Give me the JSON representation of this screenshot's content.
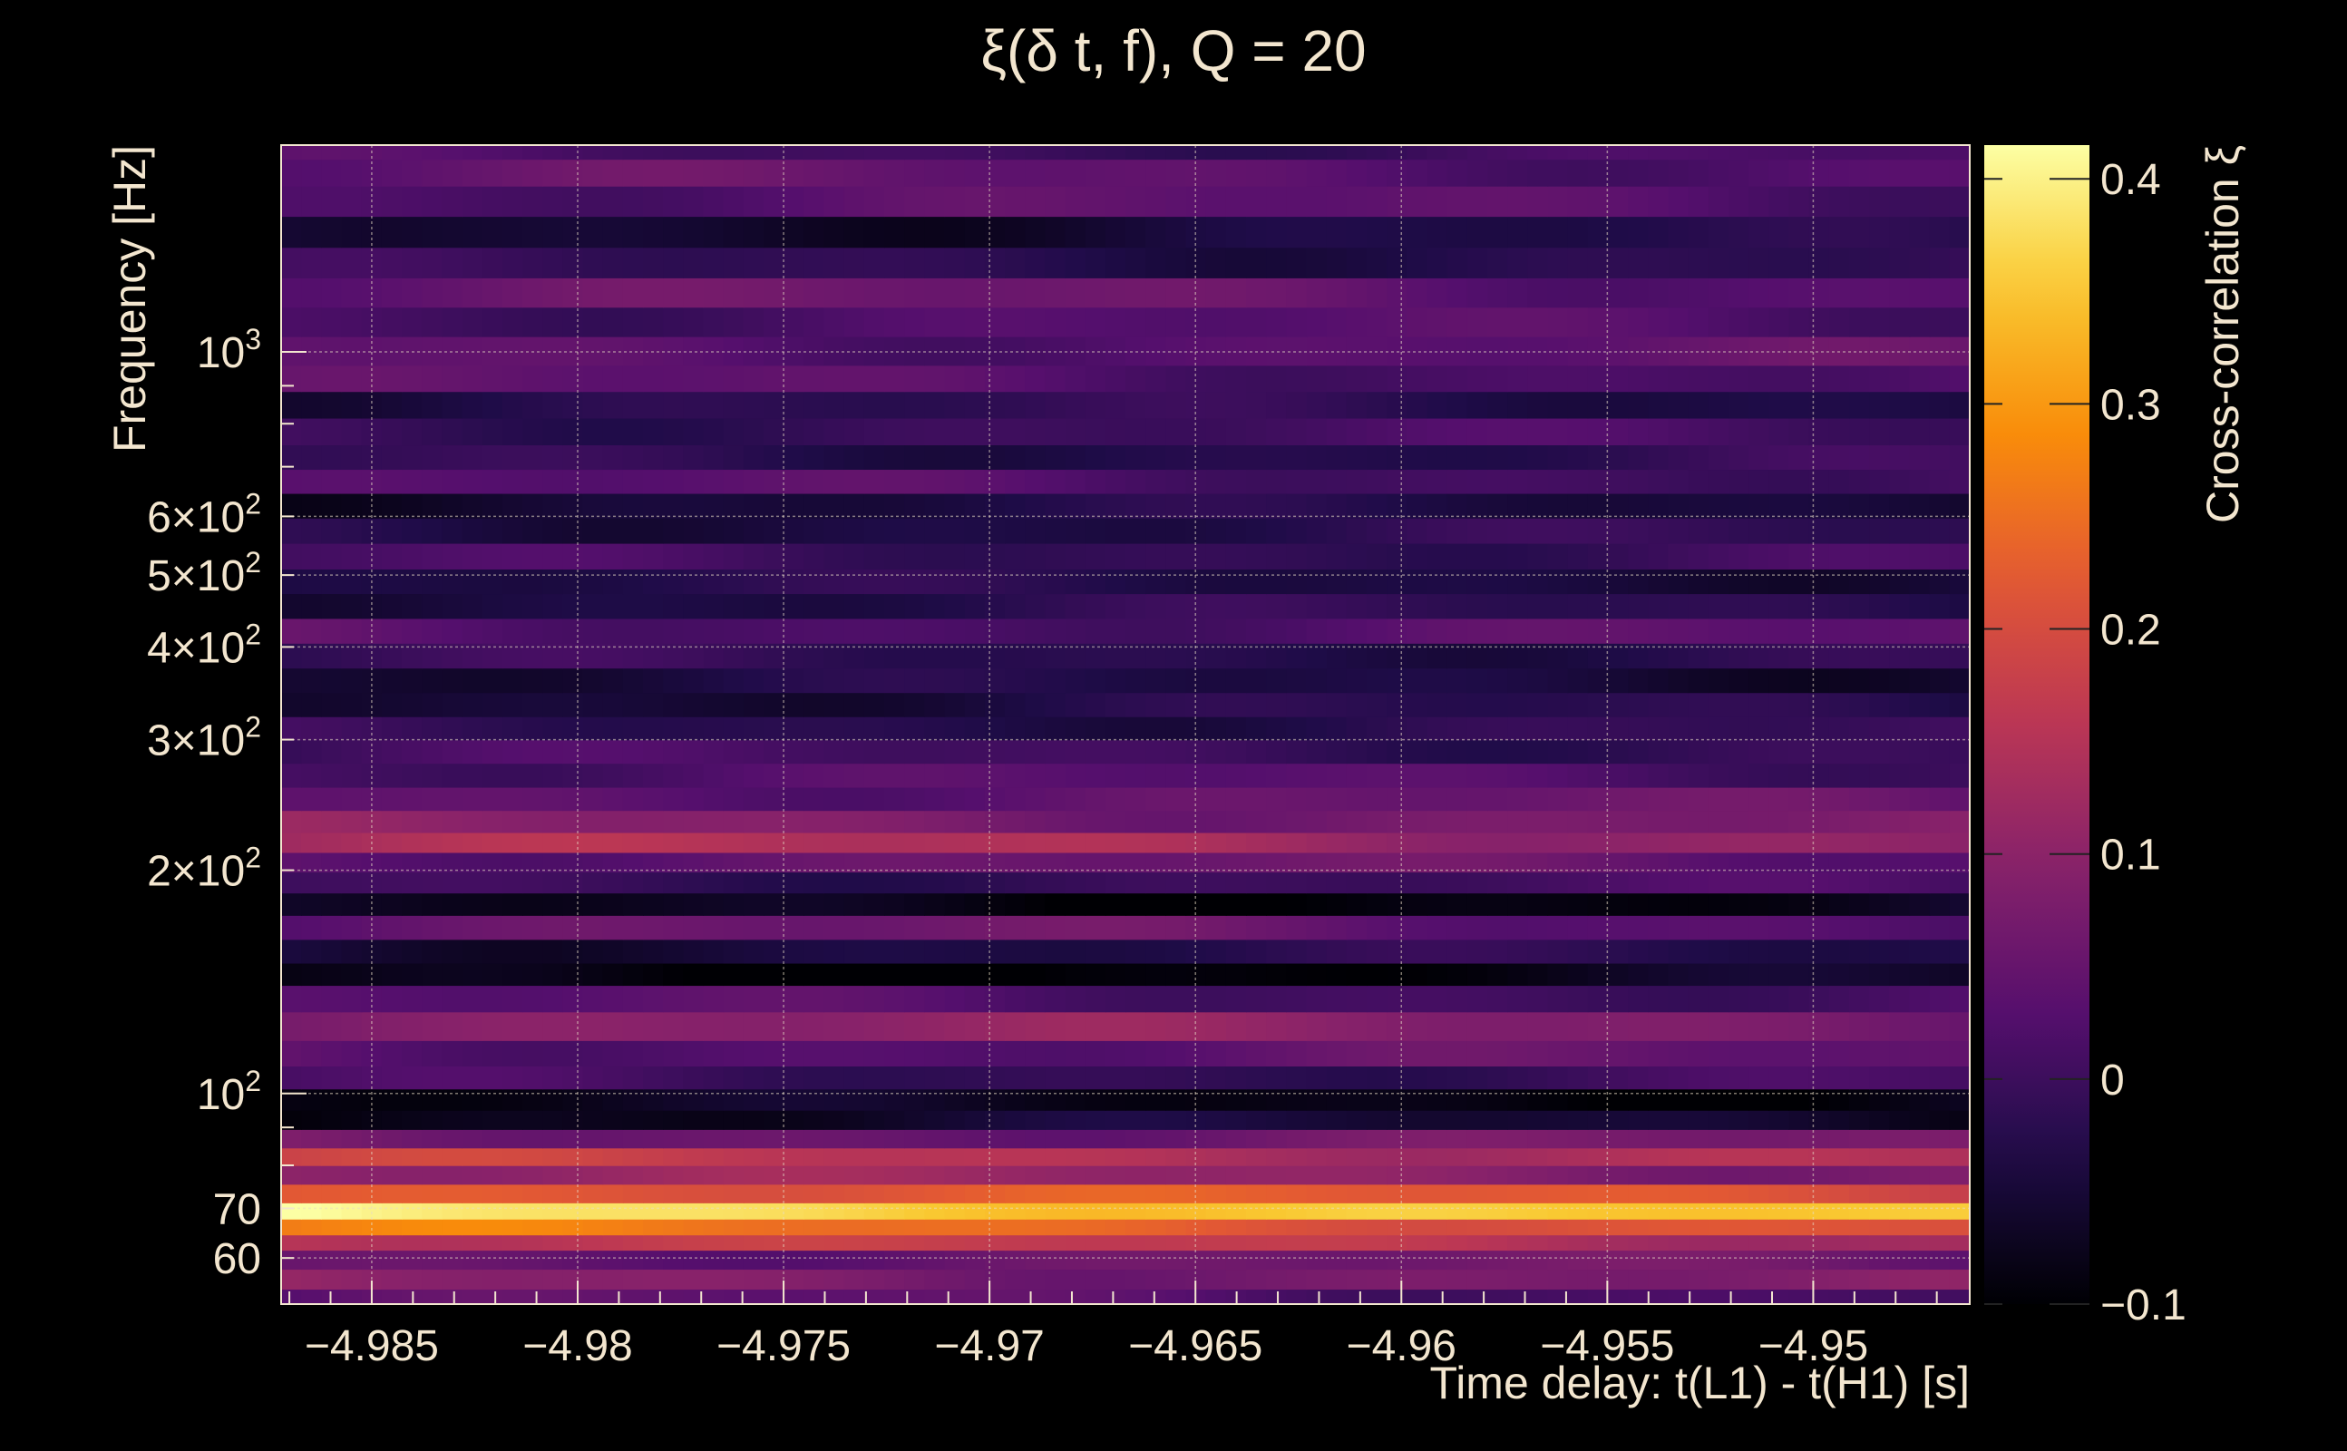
{
  "chart_data": {
    "type": "heatmap",
    "title": "ξ(δ t, f), Q = 20",
    "xlabel": "Time delay: t(L1) - t(H1) [s]",
    "ylabel": "Frequency [Hz]",
    "colorbar_label": "Cross-correlation ξ",
    "x_range": [
      -4.9872,
      -4.9462
    ],
    "y_range": [
      52,
      1900
    ],
    "y_scale": "log",
    "c_range": [
      -0.1,
      0.415
    ],
    "colormap": "inferno",
    "grid": true,
    "background": "#000000",
    "x_ticks": [
      {
        "value": -4.985,
        "label": "−4.985"
      },
      {
        "value": -4.98,
        "label": "−4.98"
      },
      {
        "value": -4.975,
        "label": "−4.975"
      },
      {
        "value": -4.97,
        "label": "−4.97"
      },
      {
        "value": -4.965,
        "label": "−4.965"
      },
      {
        "value": -4.96,
        "label": "−4.96"
      },
      {
        "value": -4.955,
        "label": "−4.955"
      },
      {
        "value": -4.95,
        "label": "−4.95"
      }
    ],
    "y_ticks": [
      {
        "value": 60,
        "label": "60"
      },
      {
        "value": 70,
        "label": "70"
      },
      {
        "value": 100,
        "label": "10",
        "sup": "2"
      },
      {
        "value": 200,
        "label": "2×10",
        "sup": "2"
      },
      {
        "value": 300,
        "label": "3×10",
        "sup": "2"
      },
      {
        "value": 400,
        "label": "4×10",
        "sup": "2"
      },
      {
        "value": 500,
        "label": "5×10",
        "sup": "2"
      },
      {
        "value": 600,
        "label": "6×10",
        "sup": "2"
      },
      {
        "value": 1000,
        "label": "10",
        "sup": "3"
      }
    ],
    "c_ticks": [
      {
        "value": -0.1,
        "label": "−0.1"
      },
      {
        "value": 0,
        "label": "0"
      },
      {
        "value": 0.1,
        "label": "0.1"
      },
      {
        "value": 0.2,
        "label": "0.2"
      },
      {
        "value": 0.3,
        "label": "0.3"
      },
      {
        "value": 0.4,
        "label": "0.4"
      }
    ],
    "band_profile": [
      {
        "f": 53,
        "v": 0.03
      },
      {
        "f": 56,
        "v": 0.09
      },
      {
        "f": 60,
        "v": 0.06
      },
      {
        "f": 63,
        "v": 0.17
      },
      {
        "f": 66,
        "v": 0.26
      },
      {
        "f": 69.5,
        "v": 0.4
      },
      {
        "f": 73,
        "v": 0.24
      },
      {
        "f": 78,
        "v": 0.11
      },
      {
        "f": 82,
        "v": 0.17
      },
      {
        "f": 87,
        "v": 0.07
      },
      {
        "f": 92,
        "v": -0.07
      },
      {
        "f": 98,
        "v": -0.09
      },
      {
        "f": 105,
        "v": 0.0
      },
      {
        "f": 113,
        "v": 0.04
      },
      {
        "f": 123,
        "v": 0.1
      },
      {
        "f": 135,
        "v": 0.02
      },
      {
        "f": 145,
        "v": -0.095
      },
      {
        "f": 155,
        "v": -0.04
      },
      {
        "f": 168,
        "v": 0.05
      },
      {
        "f": 180,
        "v": -0.09
      },
      {
        "f": 193,
        "v": 0.0
      },
      {
        "f": 205,
        "v": 0.05
      },
      {
        "f": 218,
        "v": 0.14
      },
      {
        "f": 232,
        "v": 0.09
      },
      {
        "f": 250,
        "v": 0.05
      },
      {
        "f": 268,
        "v": 0.02
      },
      {
        "f": 290,
        "v": 0.0
      },
      {
        "f": 310,
        "v": -0.02
      },
      {
        "f": 335,
        "v": -0.04
      },
      {
        "f": 360,
        "v": -0.05
      },
      {
        "f": 390,
        "v": -0.02
      },
      {
        "f": 420,
        "v": 0.03
      },
      {
        "f": 455,
        "v": -0.03
      },
      {
        "f": 490,
        "v": -0.04
      },
      {
        "f": 530,
        "v": 0.0
      },
      {
        "f": 575,
        "v": -0.03
      },
      {
        "f": 620,
        "v": -0.05
      },
      {
        "f": 670,
        "v": 0.02
      },
      {
        "f": 720,
        "v": -0.02
      },
      {
        "f": 780,
        "v": 0.0
      },
      {
        "f": 850,
        "v": -0.03
      },
      {
        "f": 920,
        "v": 0.03
      },
      {
        "f": 1000,
        "v": 0.04
      },
      {
        "f": 1100,
        "v": 0.02
      },
      {
        "f": 1200,
        "v": 0.05
      },
      {
        "f": 1320,
        "v": -0.02
      },
      {
        "f": 1450,
        "v": -0.05
      },
      {
        "f": 1600,
        "v": 0.03
      },
      {
        "f": 1750,
        "v": 0.04
      },
      {
        "f": 1890,
        "v": 0.01
      }
    ]
  }
}
